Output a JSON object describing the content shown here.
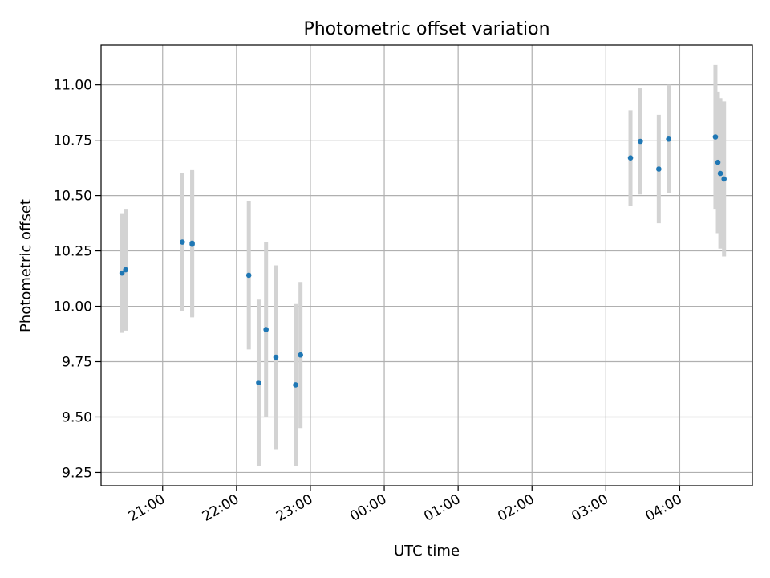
{
  "chart_data": {
    "type": "scatter",
    "title": "Photometric offset variation",
    "xlabel": "UTC time",
    "ylabel": "Photometric offset",
    "x_axis": "time",
    "xlim": [
      "20:10",
      "04:59"
    ],
    "ylim": [
      9.19,
      11.18
    ],
    "x_ticks": [
      "21:00",
      "22:00",
      "23:00",
      "00:00",
      "01:00",
      "02:00",
      "03:00",
      "04:00"
    ],
    "y_ticks": [
      9.25,
      9.5,
      9.75,
      10.0,
      10.25,
      10.5,
      10.75,
      11.0
    ],
    "grid": true,
    "legend": "none",
    "colors": {
      "points": "#1f77b4",
      "errorbars": "#d3d3d3",
      "grid": "#b0b0b0"
    },
    "points": [
      {
        "time": "20:27",
        "y": 10.15,
        "err": 0.27
      },
      {
        "time": "20:30",
        "y": 10.165,
        "err": 0.275
      },
      {
        "time": "21:16",
        "y": 10.29,
        "err": 0.31
      },
      {
        "time": "21:24",
        "y": 10.285,
        "err": 0.33
      },
      {
        "time": "21:24",
        "y": 10.28,
        "err": 0.33
      },
      {
        "time": "22:10",
        "y": 10.14,
        "err": 0.335
      },
      {
        "time": "22:18",
        "y": 9.655,
        "err": 0.375
      },
      {
        "time": "22:24",
        "y": 9.895,
        "err": 0.395
      },
      {
        "time": "22:32",
        "y": 9.77,
        "err": 0.415
      },
      {
        "time": "22:48",
        "y": 9.645,
        "err": 0.365
      },
      {
        "time": "22:52",
        "y": 9.78,
        "err": 0.33
      },
      {
        "time": "03:20",
        "y": 10.67,
        "err": 0.215
      },
      {
        "time": "03:28",
        "y": 10.745,
        "err": 0.24
      },
      {
        "time": "03:43",
        "y": 10.62,
        "err": 0.245
      },
      {
        "time": "03:51",
        "y": 10.755,
        "err": 0.245
      },
      {
        "time": "04:29",
        "y": 10.765,
        "err": 0.325
      },
      {
        "time": "04:31",
        "y": 10.65,
        "err": 0.32
      },
      {
        "time": "04:33",
        "y": 10.6,
        "err": 0.34
      },
      {
        "time": "04:36",
        "y": 10.575,
        "err": 0.35
      }
    ]
  }
}
